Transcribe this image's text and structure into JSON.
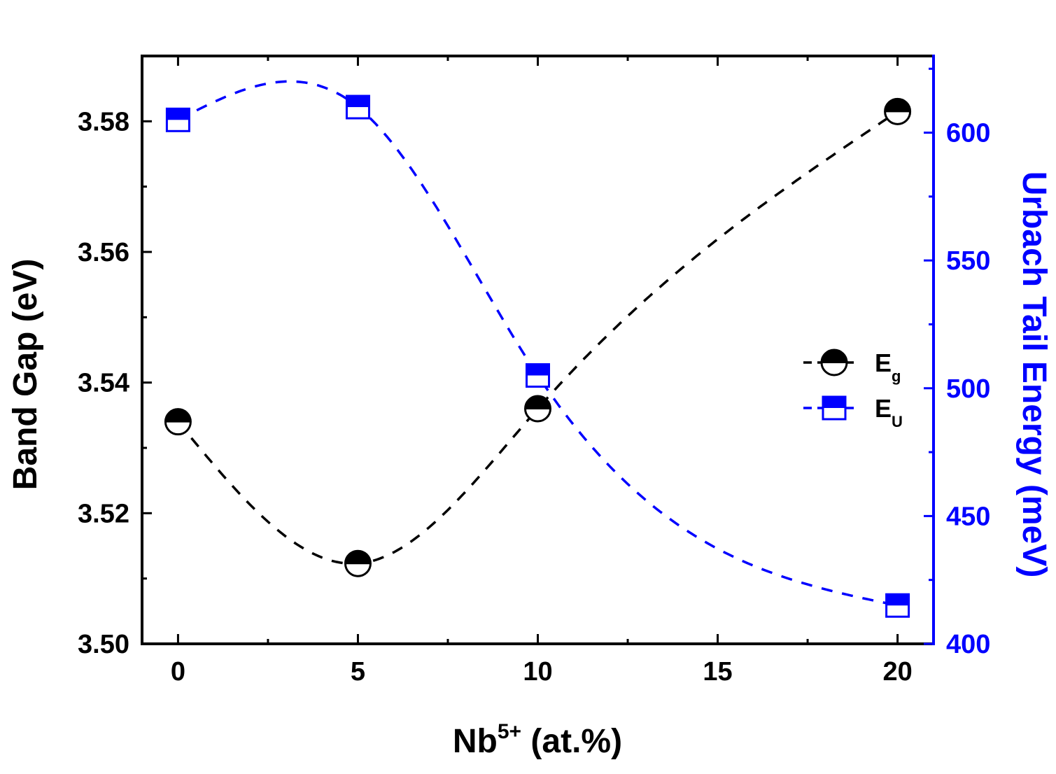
{
  "chart_data": {
    "type": "line",
    "xlabel": {
      "base": "Nb",
      "sup": "5+",
      "rest": " (at.%)"
    },
    "ylabel_left": "Band Gap (eV)",
    "ylabel_right": "Urbach Tail Energy (meV)",
    "xlim": [
      -1,
      21
    ],
    "ylim_left": [
      3.5,
      3.59
    ],
    "ylim_right": [
      400,
      630
    ],
    "x_ticks": [
      0,
      5,
      10,
      15,
      20
    ],
    "x_tick_labels": [
      "0",
      "5",
      "10",
      "15",
      "20"
    ],
    "y_left_ticks": [
      3.5,
      3.52,
      3.54,
      3.56,
      3.58
    ],
    "y_left_tick_labels": [
      "3.50",
      "3.52",
      "3.54",
      "3.56",
      "3.58"
    ],
    "y_right_ticks": [
      400,
      450,
      500,
      550,
      600
    ],
    "y_right_tick_labels": [
      "400",
      "450",
      "500",
      "550",
      "600"
    ],
    "grid": false,
    "legend_position": "center-right",
    "series": [
      {
        "name": "E",
        "sub": "g",
        "axis": "left",
        "color": "#000000",
        "marker": "half-filled-circle",
        "line": "dashed",
        "x": [
          0,
          5,
          10,
          20
        ],
        "y": [
          3.534,
          3.5123,
          3.536,
          3.5815
        ]
      },
      {
        "name": "E",
        "sub": "U",
        "axis": "right",
        "color": "#0000ff",
        "marker": "half-filled-square",
        "line": "dashed",
        "x": [
          0,
          5,
          10,
          20
        ],
        "y": [
          605,
          610,
          505,
          415
        ]
      }
    ]
  }
}
